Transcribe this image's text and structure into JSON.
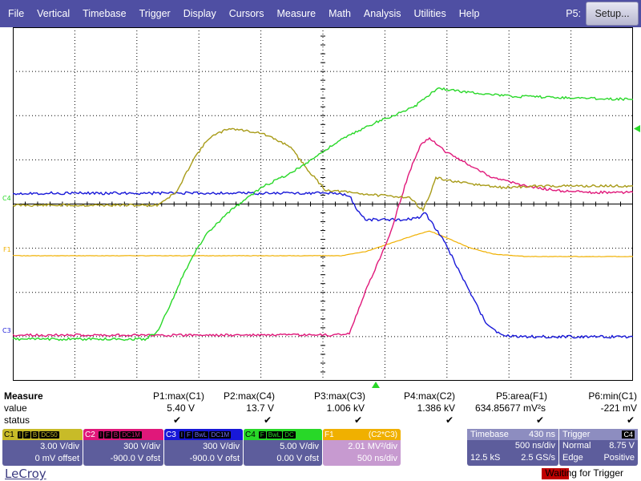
{
  "menu": {
    "items": [
      "File",
      "Vertical",
      "Timebase",
      "Trigger",
      "Display",
      "Cursors",
      "Measure",
      "Math",
      "Analysis",
      "Utilities",
      "Help"
    ],
    "right_label": "P5:",
    "setup_label": "Setup..."
  },
  "channel_markers": {
    "c4": "C4",
    "f1": "F1",
    "c3": "C3"
  },
  "colors": {
    "c1": "#a89b18",
    "c2": "#e0187a",
    "c3": "#1818d8",
    "c4": "#28d828",
    "f1": "#f0b000",
    "menu": "#4f4fa3"
  },
  "measure": {
    "title": "Measure",
    "row_value": "value",
    "row_status": "status",
    "params": [
      {
        "name": "P1:max(C1)",
        "value": "5.40 V",
        "status": "✔"
      },
      {
        "name": "P2:max(C4)",
        "value": "13.7 V",
        "status": "✔"
      },
      {
        "name": "P3:max(C3)",
        "value": "1.006 kV",
        "status": "✔"
      },
      {
        "name": "P4:max(C2)",
        "value": "1.386 kV",
        "status": "✔"
      },
      {
        "name": "P5:area(F1)",
        "value": "634.85677 mV²s",
        "status": "✔"
      },
      {
        "name": "P6:min(C1)",
        "value": "-221 mV",
        "status": "✔"
      }
    ]
  },
  "channels": [
    {
      "name": "C1",
      "tags": [
        "I",
        "F",
        "B",
        "DC50"
      ],
      "line1": "3.00 V/div",
      "line2": "0 mV offset"
    },
    {
      "name": "C2",
      "tags": [
        "I",
        "F",
        "B",
        "DC1M"
      ],
      "line1": "300 V/div",
      "line2": "-900.0 V ofst"
    },
    {
      "name": "C3",
      "tags": [
        "I",
        "F",
        "BwL",
        "DC1M"
      ],
      "line1": "300 V/div",
      "line2": "-900.0 V ofst"
    },
    {
      "name": "C4",
      "tags": [
        "F",
        "BwL",
        "DC"
      ],
      "line1": "5.00 V/div",
      "line2": "0.00 V ofst"
    },
    {
      "name": "F1",
      "formula": "(C2*C3)",
      "line1": "2.01 MV²/div",
      "line2": "500 ns/div"
    }
  ],
  "timebase": {
    "label": "Timebase",
    "delay": "430 ns",
    "per_div": "500 ns/div",
    "samples": "12.5 kS",
    "rate": "2.5 GS/s"
  },
  "trigger": {
    "label": "Trigger",
    "source": "C4",
    "mode": "Normal",
    "level": "8.75 V",
    "type": "Edge",
    "slope": "Positive"
  },
  "footer": {
    "logo": "LeCroy",
    "status": "Waiting for Trigger"
  }
}
